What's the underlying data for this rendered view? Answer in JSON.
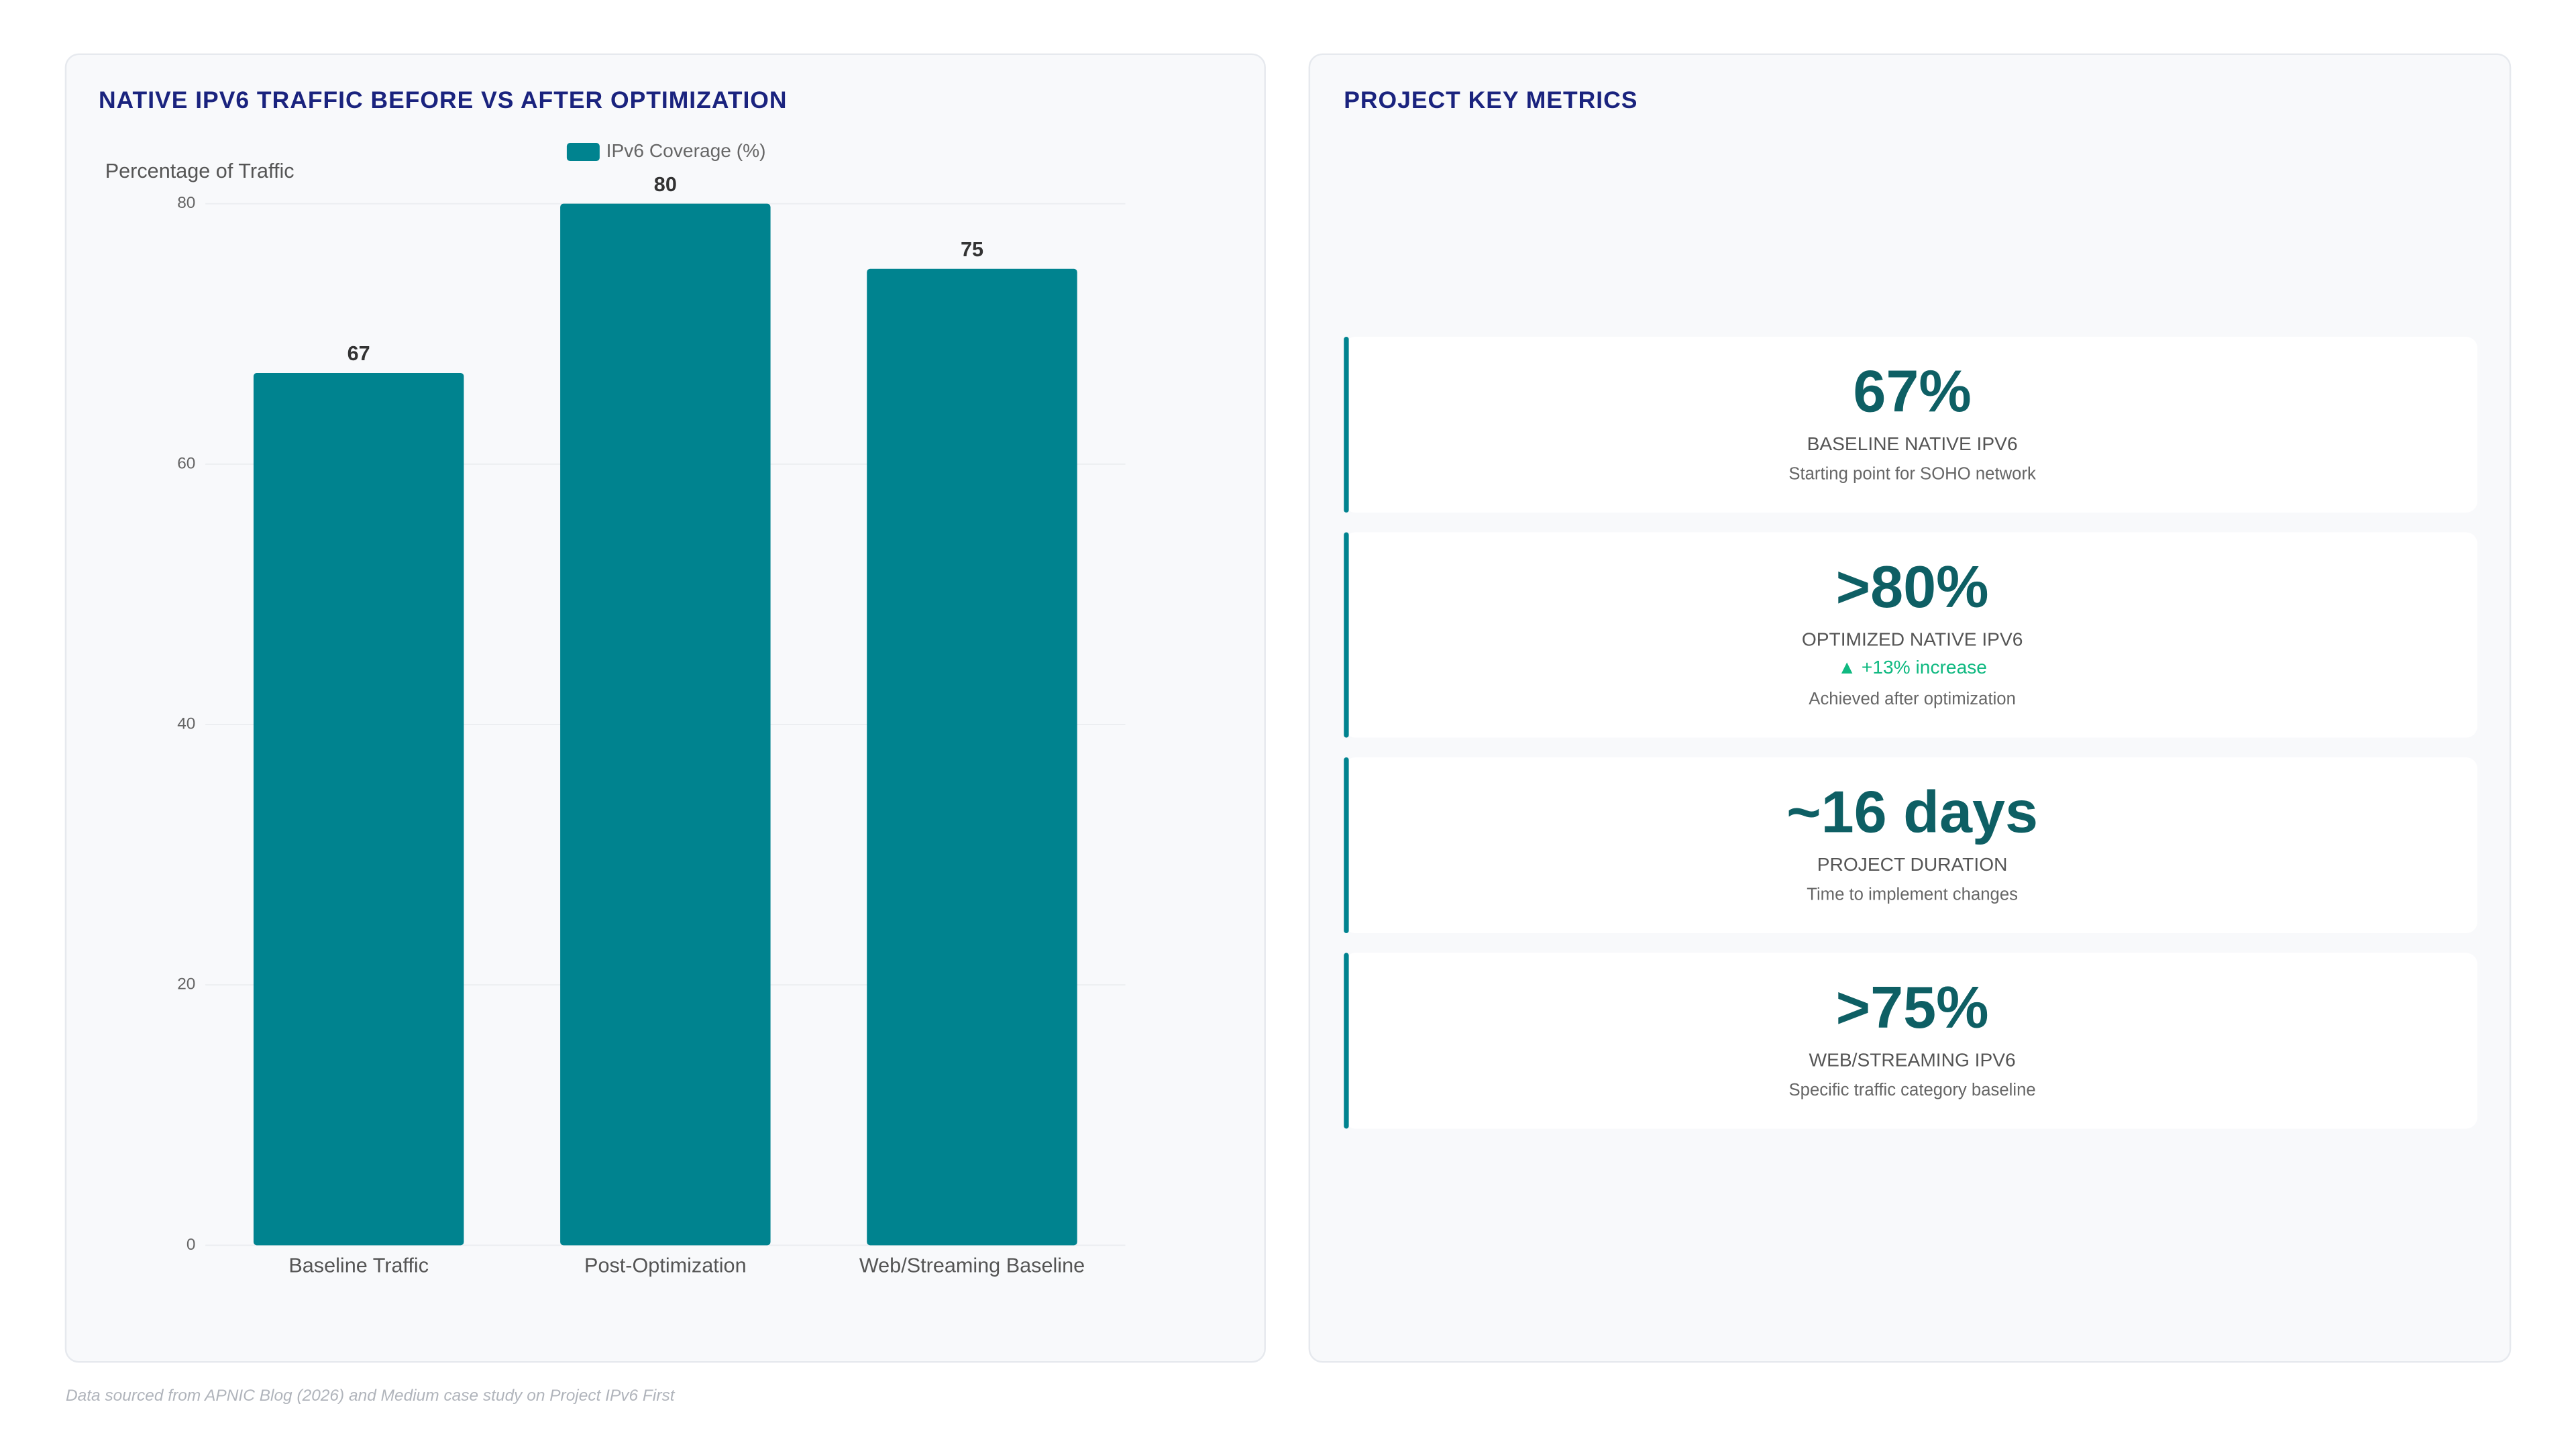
{
  "chart_data": {
    "type": "bar",
    "title": "NATIVE IPV6 TRAFFIC BEFORE VS AFTER OPTIMIZATION",
    "y_label": "Percentage of Traffic",
    "categories": [
      "Baseline Traffic",
      "Post-Optimization",
      "Web/Streaming Baseline"
    ],
    "series": [
      {
        "name": "IPv6 Coverage (%)",
        "color": "#00838f",
        "values": [
          67,
          80,
          75
        ]
      }
    ],
    "ylim": [
      0,
      80
    ],
    "yticks": [
      0,
      20,
      40,
      60,
      80
    ],
    "grid": true,
    "legend": "top"
  },
  "metrics_panel": {
    "title": "PROJECT KEY METRICS",
    "cards": [
      {
        "value": "67%",
        "label": "BASELINE NATIVE IPV6",
        "note": "Starting point for SOHO network"
      },
      {
        "value": ">80%",
        "label": "OPTIMIZED NATIVE IPV6",
        "change": "▲ +13% increase",
        "note": "Achieved after optimization"
      },
      {
        "value": "~16 days",
        "label": "PROJECT DURATION",
        "note": "Time to implement changes"
      },
      {
        "value": ">75%",
        "label": "WEB/STREAMING IPV6",
        "note": "Specific traffic category baseline"
      }
    ]
  },
  "footer": "Data sourced from APNIC Blog (2026) and Medium case study on Project IPv6 First"
}
